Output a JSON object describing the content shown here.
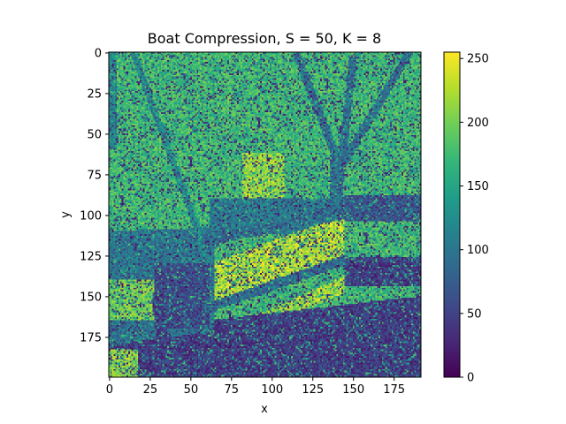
{
  "chart_data": {
    "type": "heatmap",
    "title": "Boat Compression, S = 50, K = 8",
    "xlabel": "x",
    "ylabel": "y",
    "xlim": [
      0,
      192
    ],
    "ylim": [
      200,
      0
    ],
    "x_ticks": [
      0,
      25,
      50,
      75,
      100,
      125,
      150,
      175
    ],
    "y_ticks": [
      0,
      25,
      50,
      75,
      100,
      125,
      150,
      175
    ],
    "colorbar": {
      "range": [
        0,
        255
      ],
      "ticks": [
        0,
        50,
        100,
        150,
        200,
        250
      ],
      "colormap": "viridis"
    },
    "image": {
      "width": 192,
      "height": 200,
      "noise_fraction": 0.28,
      "background_level": 175,
      "regions": [
        {
          "kind": "rect",
          "x0": 82,
          "y0": 62,
          "x1": 108,
          "y1": 105,
          "value": 215
        },
        {
          "kind": "rect",
          "x0": 62,
          "y0": 90,
          "x1": 145,
          "y1": 112,
          "value": 105
        },
        {
          "kind": "rect",
          "x0": 145,
          "y0": 88,
          "x1": 192,
          "y1": 104,
          "value": 70
        },
        {
          "kind": "rect",
          "x0": 145,
          "y0": 126,
          "x1": 192,
          "y1": 144,
          "value": 45
        },
        {
          "kind": "poly",
          "points": [
            [
              57,
              132
            ],
            [
              145,
              100
            ],
            [
              145,
              128
            ],
            [
              62,
              155
            ]
          ],
          "value": 225
        },
        {
          "kind": "poly",
          "points": [
            [
              30,
              188
            ],
            [
              145,
              138
            ],
            [
              145,
              148
            ],
            [
              30,
              200
            ]
          ],
          "value": 220
        },
        {
          "kind": "poly",
          "points": [
            [
              0,
              172
            ],
            [
              192,
              150
            ],
            [
              192,
              200
            ],
            [
              0,
              200
            ]
          ],
          "value": 45
        },
        {
          "kind": "poly",
          "points": [
            [
              0,
              110
            ],
            [
              65,
              108
            ],
            [
              65,
              172
            ],
            [
              0,
              180
            ]
          ],
          "value": 100
        },
        {
          "kind": "rect",
          "x0": 0,
          "y0": 140,
          "x1": 28,
          "y1": 165,
          "value": 200
        },
        {
          "kind": "rect",
          "x0": 0,
          "y0": 183,
          "x1": 18,
          "y1": 200,
          "value": 210
        },
        {
          "kind": "rect",
          "x0": 28,
          "y0": 130,
          "x1": 62,
          "y1": 170,
          "value": 60
        },
        {
          "kind": "rect",
          "x0": 0,
          "y0": 0,
          "x1": 5,
          "y1": 60,
          "value": 120
        },
        {
          "kind": "line",
          "x0": 115,
          "y0": 0,
          "x1": 140,
          "y1": 65,
          "w": 2.5,
          "value": 90
        },
        {
          "kind": "line",
          "x0": 150,
          "y0": 5,
          "x1": 142,
          "y1": 80,
          "w": 2.5,
          "value": 95
        },
        {
          "kind": "line",
          "x0": 185,
          "y0": 0,
          "x1": 142,
          "y1": 72,
          "w": 2.5,
          "value": 95
        },
        {
          "kind": "line",
          "x0": 140,
          "y0": 62,
          "x1": 140,
          "y1": 100,
          "w": 4,
          "value": 95
        },
        {
          "kind": "line",
          "x0": 15,
          "y0": 0,
          "x1": 62,
          "y1": 130,
          "w": 2,
          "value": 120
        },
        {
          "kind": "line",
          "x0": 30,
          "y0": 150,
          "x1": 35,
          "y1": 200,
          "w": 3.5,
          "value": 45
        },
        {
          "kind": "line",
          "x0": 60,
          "y0": 116,
          "x1": 145,
          "y1": 100,
          "w": 3,
          "value": 95
        },
        {
          "kind": "line",
          "x0": 62,
          "y0": 157,
          "x1": 145,
          "y1": 128,
          "w": 3,
          "value": 90
        }
      ]
    }
  }
}
